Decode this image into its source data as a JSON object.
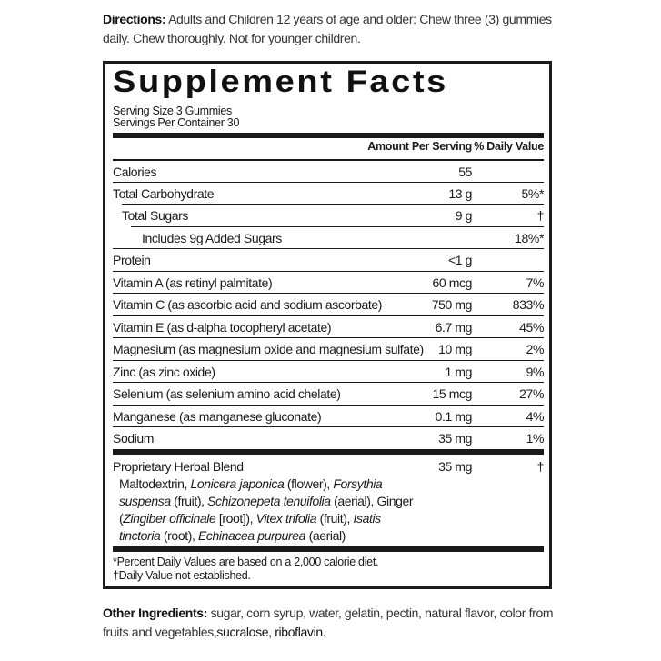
{
  "directions": {
    "label": "Directions:",
    "text": "Adults and Children 12 years of age and older: Chew three (3) gummies daily. Chew thoroughly. Not for younger children."
  },
  "facts": {
    "title": "Supplement Facts",
    "serving_size": "Serving Size 3 Gummies",
    "servings_per_container": "Servings Per Container 30",
    "col_amount": "Amount Per Serving",
    "col_dv": "% Daily Value",
    "rows": [
      {
        "name": "Calories",
        "amount": "55",
        "dv": "",
        "indent": 0
      },
      {
        "name": "Total Carbohydrate",
        "amount": "13 g",
        "dv": "5%*",
        "indent": 0
      },
      {
        "name": "Total Sugars",
        "amount": "9 g",
        "dv": "†",
        "indent": 1
      },
      {
        "name": "Includes 9g Added Sugars",
        "amount": "",
        "dv": "18%*",
        "indent": 2
      },
      {
        "name": "Protein",
        "amount": "<1 g",
        "dv": "",
        "indent": 0
      },
      {
        "name": "Vitamin A (as retinyl palmitate)",
        "amount": "60 mcg",
        "dv": "7%",
        "indent": 0
      },
      {
        "name": "Vitamin C (as ascorbic acid and sodium ascorbate)",
        "amount": "750 mg",
        "dv": "833%",
        "indent": 0
      },
      {
        "name": "Vitamin E (as d-alpha tocopheryl acetate)",
        "amount": "6.7 mg",
        "dv": "45%",
        "indent": 0
      },
      {
        "name": "Magnesium (as magnesium oxide and magnesium sulfate)",
        "amount": "10 mg",
        "dv": "2%",
        "indent": 0
      },
      {
        "name": "Zinc (as zinc oxide)",
        "amount": "1 mg",
        "dv": "9%",
        "indent": 0
      },
      {
        "name": "Selenium (as selenium amino acid chelate)",
        "amount": "15 mcg",
        "dv": "27%",
        "indent": 0
      },
      {
        "name": "Manganese (as manganese gluconate)",
        "amount": "0.1 mg",
        "dv": "4%",
        "indent": 0
      },
      {
        "name": "Sodium",
        "amount": "35 mg",
        "dv": "1%",
        "indent": 0
      }
    ],
    "blend": {
      "name": "Proprietary Herbal Blend",
      "amount": "35 mg",
      "dv": "†",
      "ingredients": [
        {
          "t": "Maltodextrin, ",
          "i": false
        },
        {
          "t": "Lonicera japonica",
          "i": true
        },
        {
          "t": " (flower), ",
          "i": false
        },
        {
          "t": "Forsythia suspensa",
          "i": true
        },
        {
          "t": " (fruit), ",
          "i": false
        },
        {
          "t": "Schizonepeta tenuifolia",
          "i": true
        },
        {
          "t": " (aerial), Ginger (",
          "i": false
        },
        {
          "t": "Zingiber officinale",
          "i": true
        },
        {
          "t": " [root]), ",
          "i": false
        },
        {
          "t": "Vitex trifolia",
          "i": true
        },
        {
          "t": " (fruit), ",
          "i": false
        },
        {
          "t": "Isatis tinctoria",
          "i": true
        },
        {
          "t": " (root), ",
          "i": false
        },
        {
          "t": "Echinacea purpurea",
          "i": true
        },
        {
          "t": " (aerial)",
          "i": false
        }
      ]
    },
    "footnote1": "*Percent Daily Values are based on a 2,000 calorie diet.",
    "footnote2": "†Daily Value not established."
  },
  "other_ingredients": {
    "label": "Other Ingredients:",
    "text": "sugar, corn syrup, water, gelatin, pectin, natural flavor, color from fruits and vegetables,",
    "text_bold": "sucralose, riboflavin."
  }
}
